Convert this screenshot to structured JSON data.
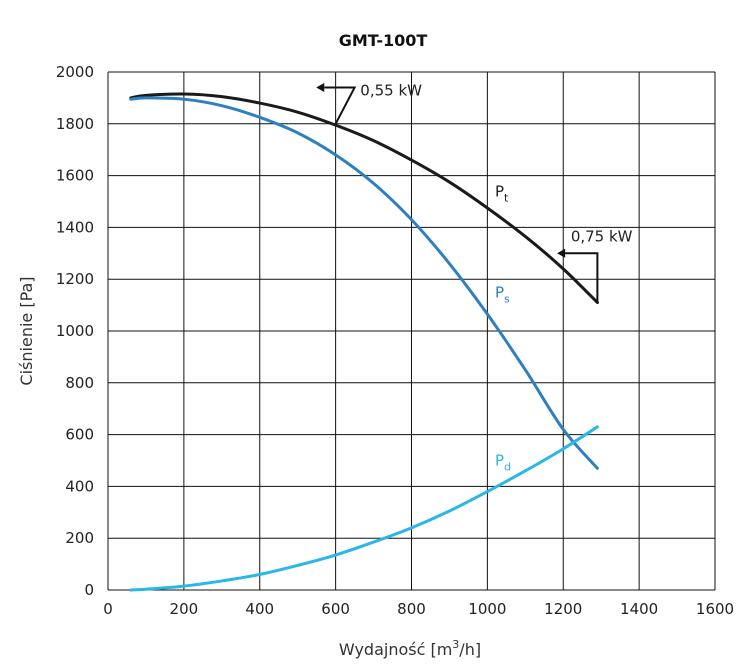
{
  "chart_data": {
    "type": "line",
    "title": "GMT-100T",
    "xlabel": "Wydajność [m3/h]",
    "xlabel_parts": {
      "prefix": "Wydajność [m",
      "sup": "3",
      "suffix": "/h]"
    },
    "ylabel": "Ciśnienie [Pa]",
    "xlim": [
      0,
      1600
    ],
    "ylim": [
      0,
      2000
    ],
    "xticks": [
      "0",
      "200",
      "400",
      "600",
      "800",
      "1000",
      "1200",
      "1400",
      "1600"
    ],
    "yticks": [
      "0",
      "200",
      "400",
      "600",
      "800",
      "1000",
      "1200",
      "1400",
      "1600",
      "1800",
      "2000"
    ],
    "grid": true,
    "legend": "none",
    "series": [
      {
        "name": "Pt",
        "label_main": "P",
        "label_sub": "t",
        "label_at": [
          1020,
          1520
        ],
        "color": "#1a1a1a",
        "x": [
          60,
          100,
          200,
          300,
          400,
          500,
          600,
          700,
          800,
          900,
          1000,
          1100,
          1200,
          1290
        ],
        "y": [
          1900,
          1910,
          1915,
          1905,
          1880,
          1845,
          1795,
          1735,
          1660,
          1575,
          1475,
          1365,
          1240,
          1110
        ]
      },
      {
        "name": "Ps",
        "label_main": "P",
        "label_sub": "s",
        "label_at": [
          1020,
          1130
        ],
        "color": "#2e7fc0",
        "x": [
          60,
          100,
          200,
          300,
          400,
          500,
          600,
          700,
          800,
          900,
          1000,
          1100,
          1200,
          1290
        ],
        "y": [
          1895,
          1900,
          1895,
          1870,
          1825,
          1765,
          1680,
          1570,
          1430,
          1260,
          1065,
          850,
          620,
          470
        ]
      },
      {
        "name": "Pd",
        "label_main": "P",
        "label_sub": "d",
        "label_at": [
          1020,
          480
        ],
        "color": "#29b6e8",
        "x": [
          60,
          100,
          200,
          300,
          400,
          500,
          600,
          700,
          800,
          900,
          1000,
          1100,
          1200,
          1290
        ],
        "y": [
          0,
          3,
          15,
          35,
          60,
          95,
          135,
          185,
          240,
          305,
          380,
          460,
          545,
          630
        ]
      }
    ],
    "annotations": [
      {
        "text": "0,55 kW",
        "label_at": [
          665,
          1910
        ],
        "arrow_path": [
          [
            600,
            1800
          ],
          [
            650,
            1940
          ],
          [
            570,
            1940
          ]
        ]
      },
      {
        "text": "0,75 kW",
        "label_at": [
          1220,
          1345
        ],
        "arrow_path": [
          [
            1290,
            1110
          ],
          [
            1290,
            1300
          ],
          [
            1205,
            1300
          ]
        ]
      }
    ]
  }
}
